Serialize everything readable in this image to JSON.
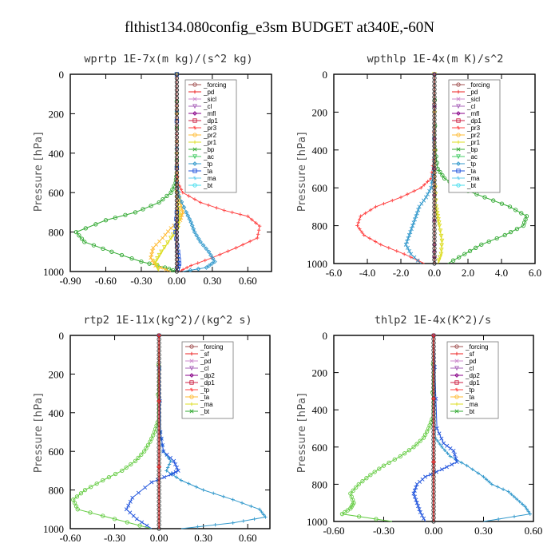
{
  "figure": {
    "title": "flthist134.080config_e3sm  BUDGET at340E,-60N",
    "ylabel": "Pressure [hPa]",
    "colors": {
      "forcing": "#a05050",
      "pd": "#cc88cc",
      "sicl": "#aa66bb",
      "cl": "#880088",
      "mfl": "#cc3366",
      "dp1": "#cc2244",
      "dp2": "#66cc44",
      "pr3": "#ff4444",
      "pr2": "#ffbb33",
      "pr1": "#dddd22",
      "bp": "#33aa33",
      "ac": "#44cc66",
      "tp": "#3399cc",
      "ta": "#2255dd",
      "ma": "#66ccee",
      "bt": "#44ddee",
      "sf": "#ee2222",
      "cl2": "#ffcc33",
      "dp1b": "#88ee66"
    }
  },
  "chart_data": [
    {
      "type": "line",
      "title": "wprtp   1E-7x(m kg)/(s^2 kg)",
      "xlim": [
        -0.9,
        0.8
      ],
      "ylim": [
        1000,
        0
      ],
      "xticks": [
        "-0.90",
        "-0.60",
        "-0.30",
        "0.00",
        "0.30",
        "0.60"
      ],
      "xtick_values": [
        -0.9,
        -0.6,
        -0.3,
        0.0,
        0.3,
        0.6
      ],
      "yticks": [
        "0",
        "200",
        "400",
        "600",
        "800",
        "1000"
      ],
      "ytick_values": [
        0,
        200,
        400,
        600,
        800,
        1000
      ],
      "legend": [
        "_forcing",
        "_pd",
        "_sicl",
        "_cl",
        "_mfl",
        "_dp1",
        "_pr3",
        "_pr2",
        "_pr1",
        "_bp",
        "_ac",
        "_tp",
        "_ta",
        "_ma",
        "_bt"
      ],
      "series": [
        {
          "name": "_bp",
          "color": "#33aa33",
          "x": [
            0,
            0,
            0,
            -0.01,
            -0.05,
            -0.15,
            -0.35,
            -0.6,
            -0.85,
            -0.78,
            -0.55,
            -0.3,
            -0.1,
            0
          ],
          "y": [
            0,
            400,
            500,
            550,
            600,
            650,
            700,
            740,
            800,
            850,
            900,
            950,
            980,
            1000
          ]
        },
        {
          "name": "_pr3",
          "color": "#ff4444",
          "x": [
            0,
            0,
            0.01,
            0.05,
            0.2,
            0.4,
            0.6,
            0.7,
            0.68,
            0.5,
            0.3,
            0.12,
            0.02
          ],
          "y": [
            0,
            450,
            550,
            600,
            650,
            690,
            720,
            770,
            830,
            880,
            930,
            970,
            1000
          ]
        },
        {
          "name": "_pr2",
          "color": "#ffbb33",
          "x": [
            0,
            0,
            0.01,
            0.03,
            0.05,
            0.03,
            -0.05,
            -0.12,
            -0.2,
            -0.22,
            -0.18,
            -0.05
          ],
          "y": [
            0,
            500,
            600,
            650,
            700,
            740,
            780,
            830,
            880,
            930,
            970,
            1000
          ]
        },
        {
          "name": "_pr1",
          "color": "#dddd22",
          "x": [
            0,
            0,
            0.01,
            0.02,
            0.01,
            -0.05,
            -0.13,
            -0.18,
            -0.15
          ],
          "y": [
            0,
            600,
            680,
            720,
            780,
            830,
            900,
            950,
            1000
          ]
        },
        {
          "name": "_tp",
          "color": "#3399cc",
          "x": [
            0,
            0,
            0.02,
            0.08,
            0.12,
            0.15,
            0.2,
            0.27,
            0.32,
            0.25,
            0.05
          ],
          "y": [
            0,
            550,
            620,
            700,
            750,
            800,
            850,
            900,
            950,
            980,
            1000
          ]
        },
        {
          "name": "_ta",
          "color": "#2255dd",
          "x": [
            0,
            0,
            -0.01,
            0.01,
            0.02,
            0.0
          ],
          "y": [
            0,
            700,
            800,
            900,
            960,
            1000
          ]
        },
        {
          "name": "_forcing",
          "color": "#a05050",
          "x": [
            0,
            0
          ],
          "y": [
            0,
            1000
          ]
        }
      ]
    },
    {
      "type": "line",
      "title": "wpthlp   1E-4x(m K)/s^2",
      "xlim": [
        -6.0,
        6.0
      ],
      "ylim": [
        1000,
        0
      ],
      "xticks": [
        "-6.0",
        "-4.0",
        "-2.0",
        "0.0",
        "2.0",
        "4.0",
        "6.0"
      ],
      "xtick_values": [
        -6.0,
        -4.0,
        -2.0,
        0.0,
        2.0,
        4.0,
        6.0
      ],
      "yticks": [
        "0",
        "200",
        "400",
        "600",
        "800",
        "1000"
      ],
      "ytick_values": [
        0,
        200,
        400,
        600,
        800,
        1000
      ],
      "legend": [
        "_forcing",
        "_pd",
        "_sicl",
        "_cl",
        "_mfl",
        "_dp1",
        "_pr3",
        "_pr2",
        "_pr1",
        "_bp",
        "_ac",
        "_tp",
        "_ta",
        "_ma",
        "_bt"
      ],
      "series": [
        {
          "name": "_bp",
          "color": "#33aa33",
          "x": [
            0,
            0.05,
            0.2,
            0.6,
            1.5,
            3.0,
            4.5,
            5.5,
            5.3,
            4.2,
            2.8,
            1.8,
            0.8
          ],
          "y": [
            0,
            400,
            500,
            550,
            600,
            650,
            700,
            750,
            800,
            850,
            900,
            950,
            1000
          ]
        },
        {
          "name": "_pr3",
          "color": "#ff4444",
          "x": [
            0,
            -0.05,
            -0.2,
            -0.8,
            -2.0,
            -3.5,
            -4.4,
            -4.6,
            -4.2,
            -3.2,
            -1.8,
            -0.6
          ],
          "y": [
            0,
            450,
            550,
            600,
            650,
            700,
            750,
            800,
            850,
            900,
            950,
            1000
          ]
        },
        {
          "name": "_tp",
          "color": "#3399cc",
          "x": [
            0,
            -0.05,
            -0.2,
            -0.5,
            -0.9,
            -1.1,
            -1.3,
            -1.5,
            -1.7,
            -1.4,
            -0.8
          ],
          "y": [
            0,
            500,
            600,
            650,
            700,
            750,
            800,
            850,
            900,
            950,
            1000
          ]
        },
        {
          "name": "_pr1",
          "color": "#dddd22",
          "x": [
            0,
            0.05,
            0.1,
            0.2,
            0.3,
            0.45,
            0.4,
            0.2
          ],
          "y": [
            0,
            600,
            700,
            750,
            800,
            880,
            950,
            1000
          ]
        },
        {
          "name": "_cl",
          "color": "#880088",
          "x": [
            0,
            0,
            0,
            0
          ],
          "y": [
            0,
            500,
            900,
            1000
          ]
        },
        {
          "name": "_forcing",
          "color": "#a05050",
          "x": [
            0,
            0
          ],
          "y": [
            0,
            1000
          ]
        }
      ]
    },
    {
      "type": "line",
      "title": "rtp2   1E-11x(kg^2)/(kg^2 s)",
      "xlim": [
        -0.6,
        0.75
      ],
      "ylim": [
        1000,
        0
      ],
      "xticks": [
        "-0.60",
        "-0.30",
        "0.00",
        "0.30",
        "0.60"
      ],
      "xtick_values": [
        -0.6,
        -0.3,
        0.0,
        0.3,
        0.6
      ],
      "yticks": [
        "0",
        "200",
        "400",
        "600",
        "800",
        "1000"
      ],
      "ytick_values": [
        0,
        200,
        400,
        600,
        800,
        1000
      ],
      "legend": [
        "_forcing",
        "_sf",
        "_pd",
        "_cl",
        "_dp2",
        "_dp1",
        "_tp",
        "_ta",
        "_ma",
        "_bt"
      ],
      "series": [
        {
          "name": "_dp2",
          "color": "#66cc44",
          "x": [
            0,
            -0.01,
            -0.03,
            -0.06,
            -0.1,
            -0.16,
            -0.25,
            -0.38,
            -0.5,
            -0.58,
            -0.55,
            -0.3,
            -0.05
          ],
          "y": [
            0,
            450,
            500,
            550,
            600,
            650,
            700,
            750,
            800,
            850,
            900,
            950,
            1000
          ]
        },
        {
          "name": "_tp",
          "color": "#3399cc",
          "x": [
            0,
            0.01,
            0.03,
            0.08,
            0.05,
            0.15,
            0.3,
            0.5,
            0.68,
            0.72,
            0.5,
            0.15
          ],
          "y": [
            0,
            500,
            600,
            650,
            700,
            750,
            800,
            850,
            900,
            940,
            970,
            1000
          ]
        },
        {
          "name": "_ta",
          "color": "#2255dd",
          "x": [
            0,
            0.01,
            0.03,
            0.1,
            0.13,
            0.08,
            -0.05,
            -0.18,
            -0.22,
            -0.15,
            -0.05
          ],
          "y": [
            0,
            500,
            600,
            650,
            700,
            720,
            760,
            840,
            900,
            950,
            1000
          ]
        },
        {
          "name": "_forcing",
          "color": "#a05050",
          "x": [
            0,
            0
          ],
          "y": [
            0,
            1000
          ]
        },
        {
          "name": "_sf",
          "color": "#ee2222",
          "x": [
            0,
            0
          ],
          "y": [
            0,
            1000
          ]
        }
      ]
    },
    {
      "type": "line",
      "title": "thlp2   1E-4x(K^2)/s",
      "xlim": [
        -0.6,
        0.6
      ],
      "ylim": [
        1000,
        0
      ],
      "xticks": [
        "-0.60",
        "-0.30",
        "0.00",
        "0.30",
        "0.60"
      ],
      "xtick_values": [
        -0.6,
        -0.3,
        0.0,
        0.3,
        0.6
      ],
      "yticks": [
        "0",
        "200",
        "400",
        "600",
        "800",
        "1000"
      ],
      "ytick_values": [
        0,
        200,
        400,
        600,
        800,
        1000
      ],
      "legend": [
        "_forcing",
        "_sf",
        "_pd",
        "_cl",
        "_dp2",
        "_dp1",
        "_tp",
        "_ta",
        "_ma",
        "_bt"
      ],
      "series": [
        {
          "name": "_dp2",
          "color": "#66cc44",
          "x": [
            0,
            -0.01,
            -0.03,
            -0.06,
            -0.12,
            -0.2,
            -0.3,
            -0.38,
            -0.45,
            -0.5,
            -0.48,
            -0.5,
            -0.55,
            -0.25
          ],
          "y": [
            0,
            450,
            500,
            550,
            600,
            650,
            700,
            750,
            800,
            850,
            900,
            930,
            960,
            1000
          ]
        },
        {
          "name": "_tp",
          "color": "#3399cc",
          "x": [
            0,
            0.01,
            0.05,
            0.1,
            0.2,
            0.3,
            0.35,
            0.45,
            0.5,
            0.55,
            0.58,
            0.3
          ],
          "y": [
            0,
            550,
            600,
            650,
            700,
            760,
            800,
            840,
            880,
            920,
            960,
            1000
          ]
        },
        {
          "name": "_ta",
          "color": "#2255dd",
          "x": [
            0,
            0.02,
            0.06,
            0.12,
            0.14,
            0.05,
            -0.05,
            -0.1,
            -0.12,
            -0.1,
            -0.08,
            -0.05
          ],
          "y": [
            0,
            500,
            580,
            620,
            680,
            720,
            760,
            800,
            850,
            900,
            950,
            1000
          ]
        },
        {
          "name": "_forcing",
          "color": "#a05050",
          "x": [
            0,
            0
          ],
          "y": [
            0,
            1000
          ]
        },
        {
          "name": "_sf",
          "color": "#ee2222",
          "x": [
            0,
            0
          ],
          "y": [
            0,
            1000
          ]
        }
      ]
    }
  ]
}
